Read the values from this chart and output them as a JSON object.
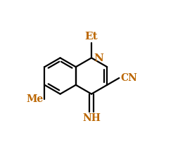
{
  "background": "#ffffff",
  "line_color": "#000000",
  "label_color_orange": "#bb6600",
  "Et_label": "Et",
  "N_label": "N",
  "CN_label": "CN",
  "Me_label": "Me",
  "NH_label": "NH",
  "figsize": [
    2.63,
    2.09
  ],
  "dpi": 100,
  "lw": 1.6,
  "font_size": 10
}
